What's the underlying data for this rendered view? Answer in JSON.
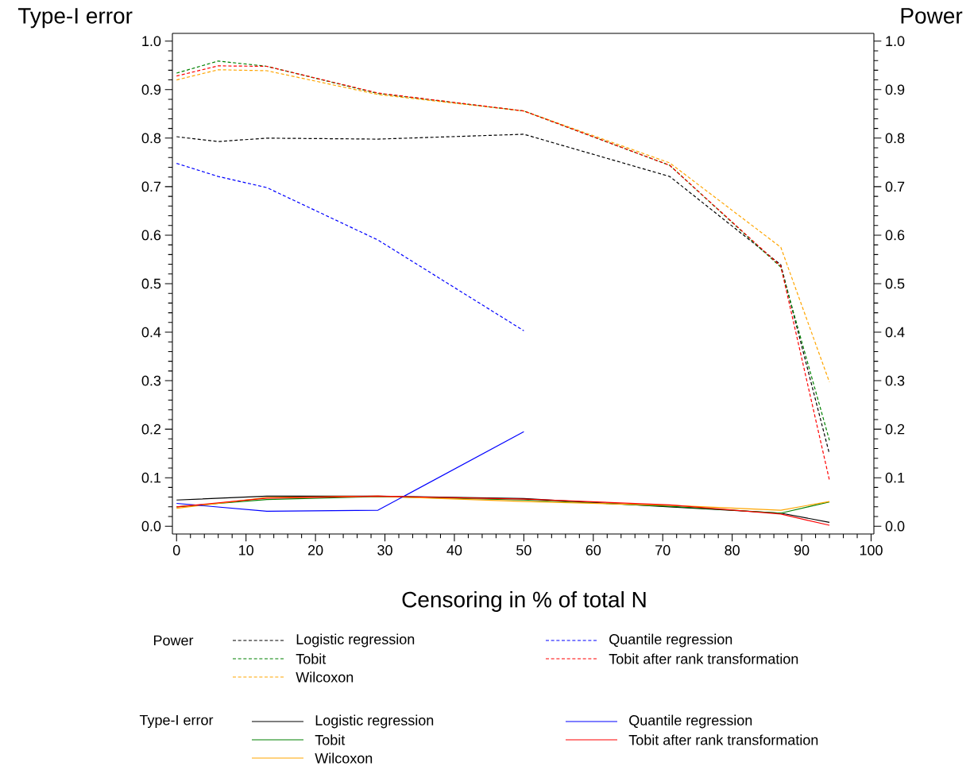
{
  "chart_data": {
    "type": "line",
    "xlabel": "Censoring in % of total N",
    "ylabel": "Type-I error",
    "y2label": "Power",
    "xlim": [
      -0.6,
      100.4
    ],
    "xticks": [
      0,
      10,
      20,
      30,
      40,
      50,
      60,
      70,
      80,
      90,
      100
    ],
    "ylim": [
      -0.016,
      1.016
    ],
    "yticks": [
      {
        "value": 0,
        "label": "0.0"
      },
      {
        "value": 0.1,
        "label": "0.1"
      },
      {
        "value": 0.2,
        "label": "0.2"
      },
      {
        "value": 0.3,
        "label": "0.3"
      },
      {
        "value": 0.4,
        "label": "0.4"
      },
      {
        "value": 0.5,
        "label": "0.5"
      },
      {
        "value": 0.6,
        "label": "0.6"
      },
      {
        "value": 0.7,
        "label": "0.7"
      },
      {
        "value": 0.8,
        "label": "0.8"
      },
      {
        "value": 0.9,
        "label": "0.9"
      },
      {
        "value": 1,
        "label": "1.0"
      }
    ],
    "y2lim": [
      -0.016,
      1.016
    ],
    "y2ticks": [
      {
        "value": 0,
        "label": "0.0"
      },
      {
        "value": 0.1,
        "label": "0.1"
      },
      {
        "value": 0.2,
        "label": "0.2"
      },
      {
        "value": 0.3,
        "label": "0.3"
      },
      {
        "value": 0.4,
        "label": "0.4"
      },
      {
        "value": 0.5,
        "label": "0.5"
      },
      {
        "value": 0.6,
        "label": "0.6"
      },
      {
        "value": 0.7,
        "label": "0.7"
      },
      {
        "value": 0.8,
        "label": "0.8"
      },
      {
        "value": 0.9,
        "label": "0.9"
      },
      {
        "value": 1,
        "label": "1.0"
      }
    ],
    "grid": false,
    "marker": "none",
    "legend": "bottom",
    "annotations": [
      "Power",
      "Type-I error"
    ],
    "series": [
      {
        "name": "Logistic regression",
        "color": "#000000",
        "axis": "y2",
        "line_style": "dashed",
        "x": [
          0,
          6,
          13,
          29,
          50,
          71,
          87,
          94
        ],
        "values": [
          0.803,
          0.793,
          0.8,
          0.798,
          0.808,
          0.721,
          0.539,
          0.149
        ]
      },
      {
        "name": "Tobit",
        "color": "#008000",
        "axis": "y2",
        "line_style": "dashed",
        "x": [
          0,
          6,
          13,
          29,
          50,
          71,
          87,
          94
        ],
        "values": [
          0.934,
          0.959,
          0.948,
          0.892,
          0.856,
          0.744,
          0.534,
          0.177
        ]
      },
      {
        "name": "Wilcoxon",
        "color": "#ffa500",
        "axis": "y2",
        "line_style": "dashed",
        "x": [
          0,
          6,
          13,
          29,
          50,
          71,
          87,
          94
        ],
        "values": [
          0.92,
          0.941,
          0.939,
          0.89,
          0.856,
          0.749,
          0.575,
          0.297
        ]
      },
      {
        "name": "Quantile regression",
        "color": "#0000ff",
        "axis": "y2",
        "line_style": "dashed",
        "x": [
          0,
          6,
          13,
          29,
          50
        ],
        "values": [
          0.748,
          0.721,
          0.698,
          0.59,
          0.403
        ]
      },
      {
        "name": "Tobit after rank transformation",
        "color": "#ff0000",
        "axis": "y2",
        "line_style": "dashed",
        "x": [
          0,
          6,
          13,
          29,
          50,
          71,
          87,
          94
        ],
        "values": [
          0.928,
          0.949,
          0.948,
          0.893,
          0.856,
          0.744,
          0.536,
          0.095
        ]
      },
      {
        "name": "Logistic regression",
        "color": "#000000",
        "line_style": "solid",
        "x": [
          0,
          13,
          29,
          50,
          71,
          87,
          94
        ],
        "values": [
          0.054,
          0.062,
          0.062,
          0.057,
          0.04,
          0.027,
          0.008
        ]
      },
      {
        "name": "Tobit",
        "color": "#008000",
        "line_style": "solid",
        "x": [
          0,
          13,
          29,
          50,
          71,
          87,
          94
        ],
        "values": [
          0.04,
          0.055,
          0.061,
          0.054,
          0.041,
          0.027,
          0.05
        ]
      },
      {
        "name": "Wilcoxon",
        "color": "#ffa500",
        "line_style": "solid",
        "x": [
          0,
          13,
          29,
          50,
          71,
          87,
          94
        ],
        "values": [
          0.037,
          0.059,
          0.062,
          0.051,
          0.043,
          0.033,
          0.051
        ]
      },
      {
        "name": "Quantile regression",
        "color": "#0000ff",
        "line_style": "solid",
        "x": [
          0,
          13,
          29,
          50
        ],
        "values": [
          0.047,
          0.031,
          0.033,
          0.195
        ]
      },
      {
        "name": "Tobit after rank transformation",
        "color": "#ff0000",
        "line_style": "solid",
        "x": [
          0,
          13,
          29,
          50,
          71,
          87,
          94
        ],
        "values": [
          0.04,
          0.058,
          0.062,
          0.056,
          0.044,
          0.025,
          0.002
        ]
      }
    ]
  }
}
